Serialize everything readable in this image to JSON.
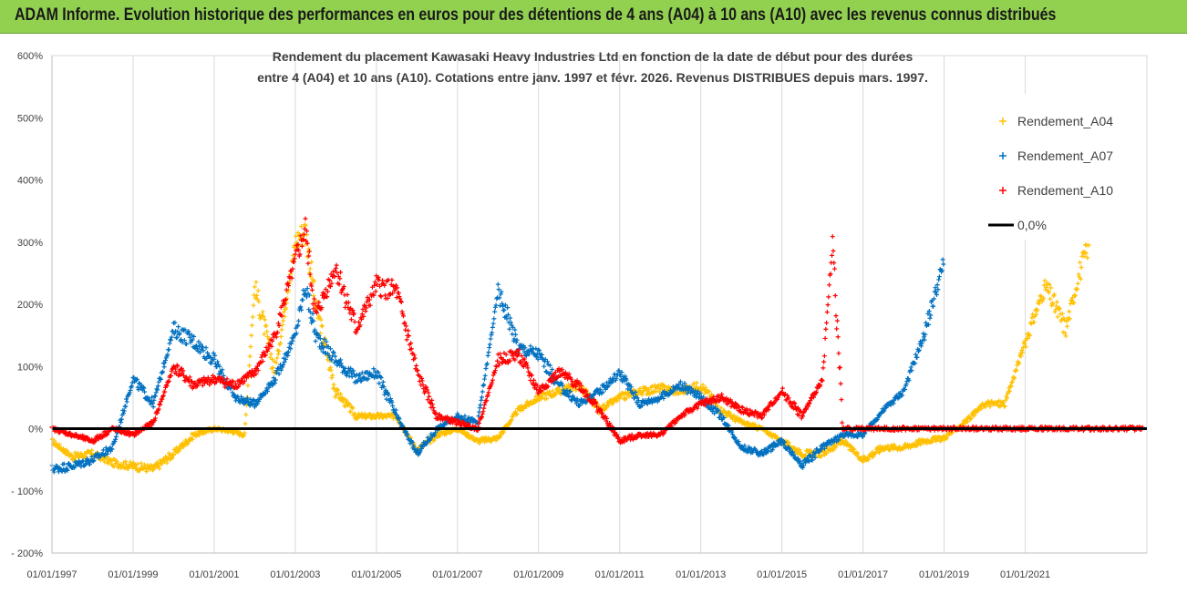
{
  "banner": {
    "title": "ADAM Informe. Evolution historique des performances en euros pour des détentions de 4 ans (A04) à 10 ans (A10) avec les revenus connus distribués"
  },
  "colors": {
    "banner_bg": "#92d050",
    "A04": "#ffc000",
    "A07": "#0070c0",
    "A10": "#ff0000",
    "zero_line": "#000000"
  },
  "chart_data": {
    "type": "scatter",
    "title_line1": "Rendement du placement Kawasaki Heavy Industries Ltd en fonction de la date de début pour des durées",
    "title_line2": "entre 4 (A04) et 10 ans (A10). Cotations entre janv. 1997 et févr. 2026. Revenus DISTRIBUES depuis mars. 1997.",
    "xlabel": "",
    "ylabel": "",
    "x_range": [
      "1997-01-01",
      "2023-12-31"
    ],
    "ylim": [
      -200,
      600
    ],
    "y_ticks": [
      "600%",
      "500%",
      "400%",
      "300%",
      "200%",
      "100%",
      "0%",
      "- 100%",
      "- 200%"
    ],
    "x_ticks": [
      "01/01/1997",
      "01/01/1999",
      "01/01/2001",
      "01/01/2003",
      "01/01/2005",
      "01/01/2007",
      "01/01/2009",
      "01/01/2011",
      "01/01/2013",
      "01/01/2015",
      "01/01/2017",
      "01/01/2019",
      "01/01/2021"
    ],
    "grid": "vertical",
    "legend_position": "top-right",
    "legend": [
      "Rendement_A04",
      "Rendement_A07",
      "Rendement_A10",
      "0,0%"
    ],
    "series": [
      {
        "name": "Rendement_A04",
        "x": [
          "1997-01",
          "1997-07",
          "1998-01",
          "1998-07",
          "1999-01",
          "1999-07",
          "2000-01",
          "2000-07",
          "2001-01",
          "2001-07",
          "2001-10",
          "2002-01",
          "2002-07",
          "2003-01",
          "2003-04",
          "2003-07",
          "2004-01",
          "2004-07",
          "2005-01",
          "2005-07",
          "2006-01",
          "2006-07",
          "2007-01",
          "2007-07",
          "2008-01",
          "2008-07",
          "2009-01",
          "2009-07",
          "2010-01",
          "2010-07",
          "2011-01",
          "2011-07",
          "2012-01",
          "2012-07",
          "2013-01",
          "2013-07",
          "2014-01",
          "2014-07",
          "2015-01",
          "2015-07",
          "2016-01",
          "2016-07",
          "2017-01",
          "2017-07",
          "2018-01",
          "2018-07",
          "2019-01",
          "2019-07",
          "2020-01",
          "2020-07",
          "2021-01",
          "2021-07",
          "2022-01",
          "2022-05",
          "2022-08"
        ],
        "y": [
          -20,
          -45,
          -40,
          -55,
          -60,
          -65,
          -40,
          -10,
          0,
          -5,
          -10,
          230,
          90,
          300,
          320,
          200,
          60,
          20,
          20,
          20,
          -35,
          -10,
          0,
          -20,
          -15,
          30,
          50,
          60,
          70,
          30,
          50,
          60,
          65,
          60,
          70,
          30,
          10,
          0,
          -20,
          -40,
          -40,
          -20,
          -50,
          -30,
          -30,
          -20,
          -15,
          10,
          40,
          40,
          140,
          230,
          160,
          250,
          300
        ]
      },
      {
        "name": "Rendement_A07",
        "x": [
          "1997-01",
          "1997-07",
          "1998-01",
          "1998-07",
          "1999-01",
          "1999-07",
          "2000-01",
          "2000-07",
          "2001-01",
          "2001-07",
          "2002-01",
          "2002-07",
          "2003-01",
          "2003-04",
          "2003-07",
          "2004-01",
          "2004-07",
          "2005-01",
          "2005-07",
          "2006-01",
          "2006-07",
          "2007-01",
          "2007-07",
          "2008-01",
          "2008-04",
          "2008-07",
          "2009-01",
          "2009-07",
          "2010-01",
          "2010-07",
          "2011-01",
          "2011-07",
          "2012-01",
          "2012-07",
          "2013-01",
          "2013-07",
          "2014-01",
          "2014-07",
          "2015-01",
          "2015-07",
          "2016-01",
          "2016-07",
          "2017-01",
          "2017-07",
          "2018-01",
          "2018-07",
          "2019-01"
        ],
        "y": [
          -65,
          -60,
          -50,
          -30,
          80,
          40,
          160,
          140,
          110,
          50,
          40,
          80,
          150,
          230,
          150,
          110,
          80,
          90,
          20,
          -40,
          0,
          20,
          10,
          220,
          180,
          130,
          120,
          70,
          40,
          60,
          90,
          40,
          50,
          70,
          50,
          20,
          -30,
          -40,
          -20,
          -60,
          -30,
          -10,
          -10,
          30,
          60,
          150,
          270
        ]
      },
      {
        "name": "Rendement_A10",
        "x": [
          "1997-01",
          "1997-07",
          "1998-01",
          "1998-07",
          "1999-01",
          "1999-07",
          "2000-01",
          "2000-07",
          "2001-01",
          "2001-07",
          "2002-01",
          "2002-07",
          "2003-01",
          "2003-04",
          "2003-07",
          "2004-01",
          "2004-07",
          "2005-01",
          "2005-07",
          "2006-01",
          "2006-07",
          "2007-01",
          "2007-07",
          "2008-01",
          "2008-07",
          "2009-01",
          "2009-07",
          "2010-01",
          "2010-07",
          "2011-01",
          "2011-07",
          "2012-01",
          "2012-07",
          "2013-01",
          "2013-07",
          "2014-01",
          "2014-07",
          "2015-01",
          "2015-07",
          "2016-01",
          "2016-04",
          "2016-07",
          "2017-01",
          "2018-01",
          "2019-01",
          "2020-01",
          "2021-01",
          "2022-01",
          "2023-01",
          "2023-12"
        ],
        "y": [
          0,
          -10,
          -20,
          0,
          -10,
          10,
          100,
          70,
          80,
          70,
          90,
          150,
          270,
          320,
          180,
          260,
          160,
          230,
          220,
          90,
          20,
          10,
          0,
          110,
          120,
          60,
          90,
          70,
          30,
          -20,
          -10,
          -10,
          20,
          40,
          50,
          30,
          20,
          60,
          20,
          80,
          300,
          0,
          0,
          0,
          0,
          0,
          0,
          0,
          0,
          0
        ]
      }
    ]
  }
}
